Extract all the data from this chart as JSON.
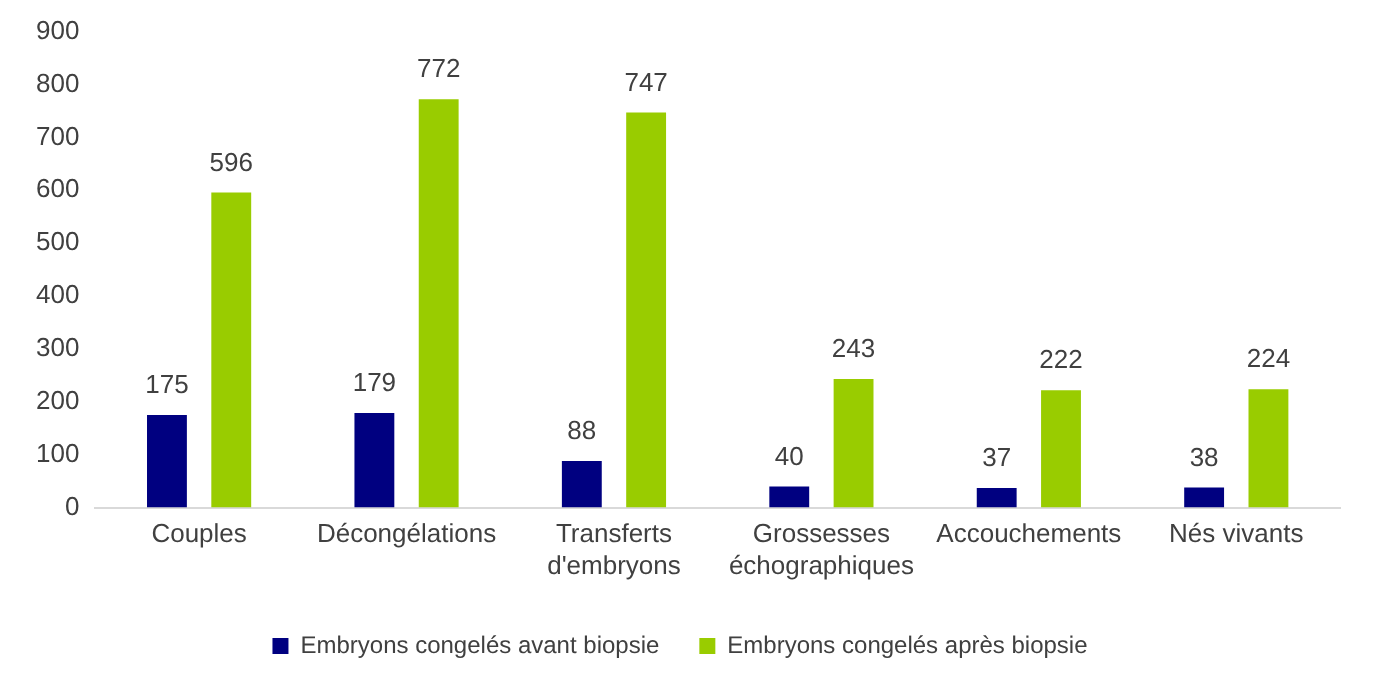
{
  "chart_data": {
    "type": "bar",
    "categories": [
      "Couples",
      "Décongélations",
      "Transferts d'embryons",
      "Grossesses échographiques",
      "Accouchements",
      "Nés vivants"
    ],
    "series": [
      {
        "name": "Embryons congelés avant biopsie",
        "color": "#000080",
        "values": [
          175,
          179,
          88,
          40,
          37,
          38
        ]
      },
      {
        "name": "Embryons congelés après biopsie",
        "color": "#99cc00",
        "values": [
          596,
          772,
          747,
          243,
          222,
          224
        ]
      }
    ],
    "ylim": [
      0,
      900
    ],
    "yticks": [
      0,
      100,
      200,
      300,
      400,
      500,
      600,
      700,
      800,
      900
    ],
    "grid": false,
    "legend": "bottom",
    "data_labels": true
  }
}
